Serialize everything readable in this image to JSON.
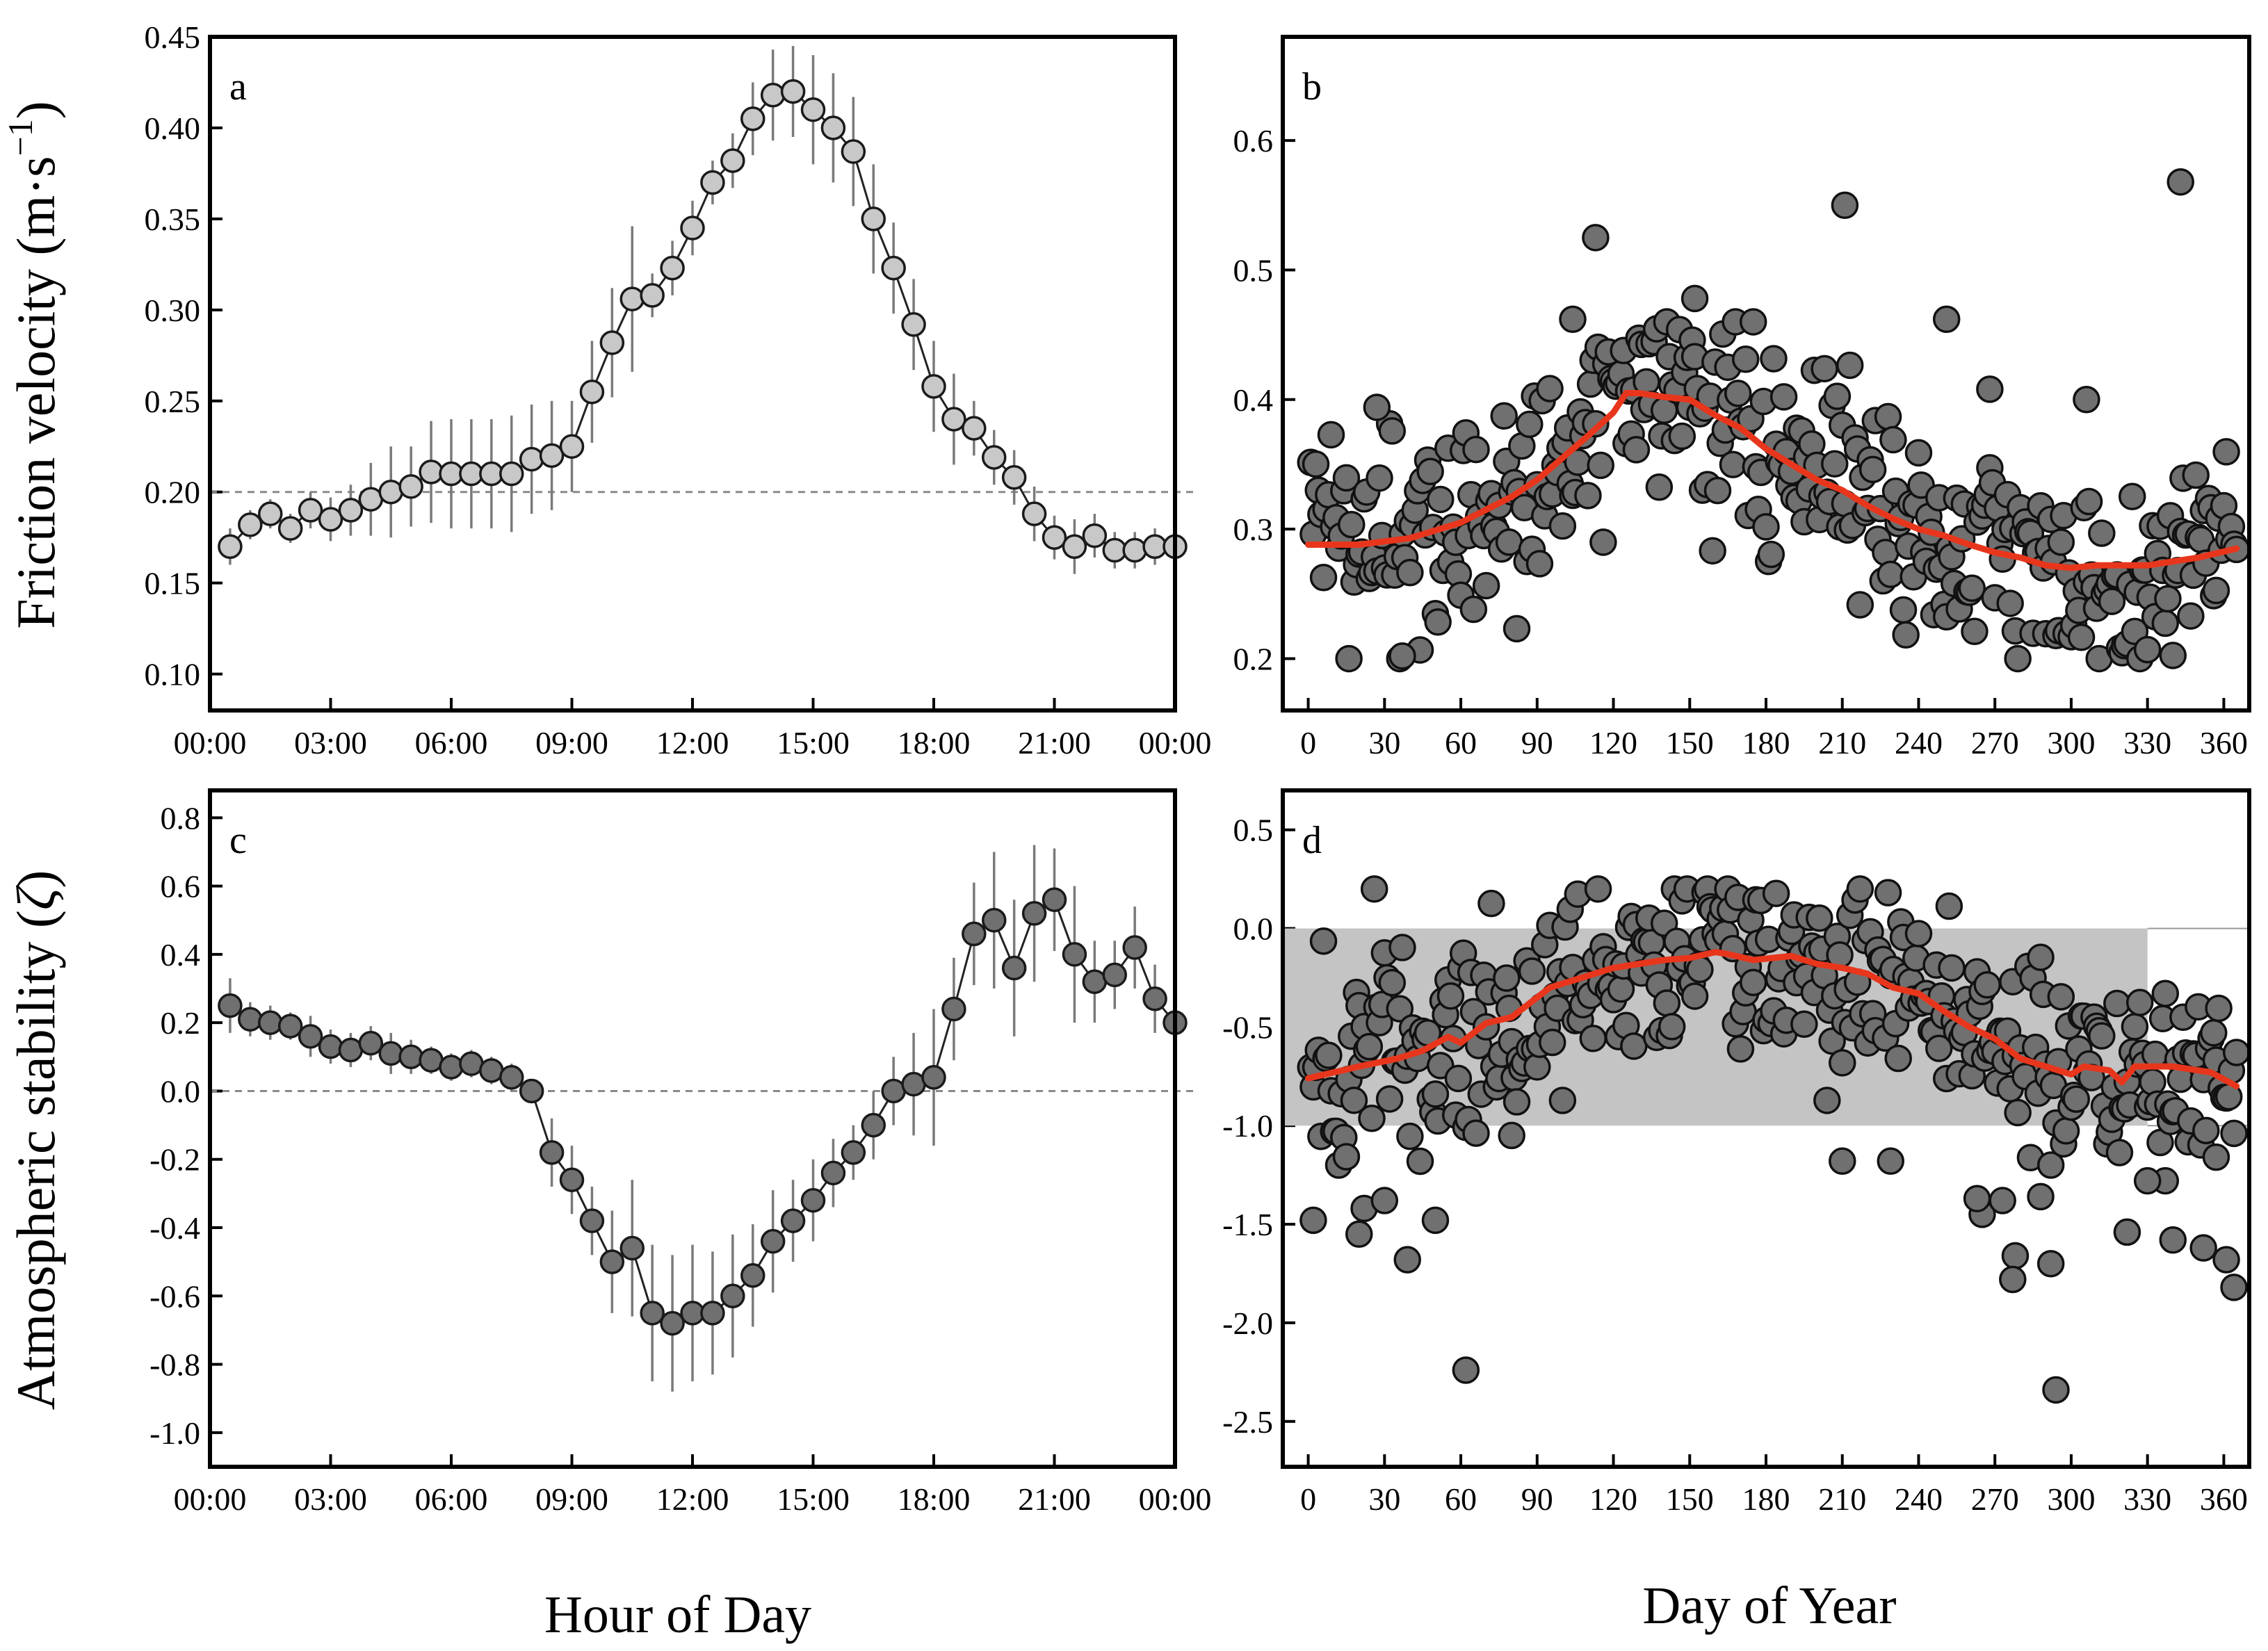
{
  "figure": {
    "ylabel_top_main": "Friction velocity (m·s",
    "ylabel_top_sup": "−1",
    "ylabel_top_end": ")",
    "ylabel_bottom_main": "Atmospheric stability (",
    "ylabel_bottom_sym": "ζ",
    "ylabel_bottom_end": ")",
    "xlabel_left": "Hour of Day",
    "xlabel_right": "Day of Year"
  },
  "colors": {
    "marker_light": "#c8c8c8",
    "marker_dark": "#707070",
    "trend": "#e8361d",
    "shade": "#c4c4c4",
    "errorbar": "#7a7a7a"
  },
  "chart_data": [
    {
      "panel": "a",
      "type": "line",
      "xlabel": "Hour of Day",
      "ylabel": "Friction velocity (m·s−1)",
      "xlim": [
        0,
        24
      ],
      "ylim": [
        0.08,
        0.45
      ],
      "xtick_labels": [
        "00:00",
        "03:00",
        "06:00",
        "09:00",
        "12:00",
        "15:00",
        "18:00",
        "21:00",
        "00:00"
      ],
      "yticks": [
        0.1,
        0.15,
        0.2,
        0.25,
        0.3,
        0.35,
        0.4,
        0.45
      ],
      "ytick_labels": [
        "0.10",
        "0.15",
        "0.20",
        "0.25",
        "0.30",
        "0.35",
        "0.40",
        "0.45"
      ],
      "reference_line": 0.2,
      "x": [
        0.5,
        1.0,
        1.5,
        2.0,
        2.5,
        3.0,
        3.5,
        4.0,
        4.5,
        5.0,
        5.5,
        6.0,
        6.5,
        7.0,
        7.5,
        8.0,
        8.5,
        9.0,
        9.5,
        10.0,
        10.5,
        11.0,
        11.5,
        12.0,
        12.5,
        13.0,
        13.5,
        14.0,
        14.5,
        15.0,
        15.5,
        16.0,
        16.5,
        17.0,
        17.5,
        18.0,
        18.5,
        19.0,
        19.5,
        20.0,
        20.5,
        21.0,
        21.5,
        22.0,
        22.5,
        23.0,
        23.5,
        24.0
      ],
      "y": [
        0.17,
        0.182,
        0.188,
        0.18,
        0.19,
        0.185,
        0.19,
        0.196,
        0.2,
        0.203,
        0.211,
        0.21,
        0.21,
        0.21,
        0.21,
        0.218,
        0.22,
        0.225,
        0.255,
        0.282,
        0.306,
        0.308,
        0.323,
        0.345,
        0.37,
        0.382,
        0.405,
        0.418,
        0.42,
        0.41,
        0.4,
        0.387,
        0.35,
        0.323,
        0.292,
        0.258,
        0.24,
        0.235,
        0.219,
        0.208,
        0.188,
        0.175,
        0.17,
        0.176,
        0.168,
        0.168,
        0.17,
        0.17
      ],
      "error": [
        0.01,
        0.008,
        0.008,
        0.008,
        0.01,
        0.012,
        0.014,
        0.02,
        0.025,
        0.022,
        0.028,
        0.03,
        0.03,
        0.03,
        0.032,
        0.03,
        0.03,
        0.025,
        0.028,
        0.03,
        0.04,
        0.012,
        0.015,
        0.015,
        0.012,
        0.015,
        0.02,
        0.025,
        0.025,
        0.03,
        0.03,
        0.03,
        0.03,
        0.025,
        0.025,
        0.025,
        0.025,
        0.015,
        0.015,
        0.015,
        0.015,
        0.012,
        0.015,
        0.012,
        0.01,
        0.01,
        0.01,
        0.01
      ]
    },
    {
      "panel": "b",
      "type": "scatter",
      "xlabel": "Day of Year",
      "ylabel": "Friction velocity (m·s−1)",
      "xlim": [
        -10,
        370
      ],
      "ylim": [
        0.16,
        0.68
      ],
      "xticks": [
        0,
        30,
        60,
        90,
        120,
        150,
        180,
        210,
        240,
        270,
        300,
        330,
        360
      ],
      "yticks": [
        0.2,
        0.3,
        0.4,
        0.5,
        0.6
      ],
      "ytick_labels": [
        "0.2",
        "0.3",
        "0.4",
        "0.5",
        "0.6"
      ],
      "trend_x": [
        0,
        20,
        40,
        60,
        70,
        80,
        90,
        100,
        110,
        120,
        125,
        130,
        140,
        150,
        160,
        170,
        180,
        190,
        200,
        210,
        220,
        230,
        240,
        250,
        260,
        270,
        280,
        290,
        300,
        310,
        320,
        330,
        340,
        350,
        365
      ],
      "trend_y": [
        0.288,
        0.288,
        0.293,
        0.305,
        0.315,
        0.325,
        0.338,
        0.355,
        0.372,
        0.39,
        0.405,
        0.405,
        0.402,
        0.4,
        0.388,
        0.378,
        0.362,
        0.35,
        0.338,
        0.33,
        0.318,
        0.308,
        0.3,
        0.295,
        0.288,
        0.282,
        0.278,
        0.272,
        0.27,
        0.272,
        0.272,
        0.272,
        0.275,
        0.278,
        0.285
      ],
      "outliers": [
        [
          113,
          0.525
        ],
        [
          211,
          0.55
        ],
        [
          251,
          0.462
        ],
        [
          343,
          0.568
        ],
        [
          104,
          0.462
        ],
        [
          152,
          0.478
        ],
        [
          268,
          0.408
        ],
        [
          306,
          0.4
        ],
        [
          27,
          0.394
        ],
        [
          37,
          0.202
        ]
      ]
    },
    {
      "panel": "c",
      "type": "line",
      "xlabel": "Hour of Day",
      "ylabel": "Atmospheric stability (ζ)",
      "xlim": [
        0,
        24
      ],
      "ylim": [
        -1.1,
        0.88
      ],
      "xtick_labels": [
        "00:00",
        "03:00",
        "06:00",
        "09:00",
        "12:00",
        "15:00",
        "18:00",
        "21:00",
        "00:00"
      ],
      "yticks": [
        -1.0,
        -0.8,
        -0.6,
        -0.4,
        -0.2,
        0.0,
        0.2,
        0.4,
        0.6,
        0.8
      ],
      "ytick_labels": [
        "-1.0",
        "-0.8",
        "-0.6",
        "-0.4",
        "-0.2",
        "0.0",
        "0.2",
        "0.4",
        "0.6",
        "0.8"
      ],
      "reference_line": 0.0,
      "x": [
        0.5,
        1.0,
        1.5,
        2.0,
        2.5,
        3.0,
        3.5,
        4.0,
        4.5,
        5.0,
        5.5,
        6.0,
        6.5,
        7.0,
        7.5,
        8.0,
        8.5,
        9.0,
        9.5,
        10.0,
        10.5,
        11.0,
        11.5,
        12.0,
        12.5,
        13.0,
        13.5,
        14.0,
        14.5,
        15.0,
        15.5,
        16.0,
        16.5,
        17.0,
        17.5,
        18.0,
        18.5,
        19.0,
        19.5,
        20.0,
        20.5,
        21.0,
        21.5,
        22.0,
        22.5,
        23.0,
        23.5,
        24.0
      ],
      "y": [
        0.25,
        0.21,
        0.2,
        0.19,
        0.16,
        0.13,
        0.12,
        0.14,
        0.11,
        0.1,
        0.09,
        0.07,
        0.08,
        0.06,
        0.04,
        0.0,
        -0.18,
        -0.26,
        -0.38,
        -0.5,
        -0.46,
        -0.65,
        -0.68,
        -0.65,
        -0.65,
        -0.6,
        -0.54,
        -0.44,
        -0.38,
        -0.32,
        -0.24,
        -0.18,
        -0.1,
        0.0,
        0.02,
        0.04,
        0.24,
        0.46,
        0.5,
        0.36,
        0.52,
        0.56,
        0.4,
        0.32,
        0.34,
        0.42,
        0.27,
        0.2
      ],
      "error": [
        0.08,
        0.05,
        0.05,
        0.04,
        0.06,
        0.05,
        0.05,
        0.05,
        0.06,
        0.05,
        0.04,
        0.04,
        0.04,
        0.04,
        0.04,
        0.03,
        0.1,
        0.1,
        0.1,
        0.15,
        0.2,
        0.2,
        0.2,
        0.2,
        0.18,
        0.18,
        0.15,
        0.15,
        0.12,
        0.12,
        0.1,
        0.08,
        0.1,
        0.1,
        0.15,
        0.2,
        0.15,
        0.15,
        0.2,
        0.2,
        0.2,
        0.15,
        0.2,
        0.12,
        0.1,
        0.12,
        0.1,
        0.1
      ]
    },
    {
      "panel": "d",
      "type": "scatter",
      "xlabel": "Day of Year",
      "ylabel": "Atmospheric stability (ζ)",
      "xlim": [
        -10,
        370
      ],
      "ylim": [
        -2.73,
        0.7
      ],
      "xticks": [
        0,
        30,
        60,
        90,
        120,
        150,
        180,
        210,
        240,
        270,
        300,
        330,
        360
      ],
      "yticks": [
        0.5,
        0.0,
        -0.5,
        -1.0,
        -1.5,
        -2.0,
        -2.5
      ],
      "ytick_labels": [
        "0.5",
        "0.0",
        "-0.5",
        "-1.0",
        "-1.5",
        "-2.0",
        "-2.5"
      ],
      "shaded_band": {
        "y_from": -1.0,
        "y_to": 0.0,
        "x_from": -10,
        "x_to": 330
      },
      "trend_x": [
        0,
        20,
        35,
        45,
        55,
        60,
        70,
        80,
        95,
        100,
        110,
        120,
        130,
        140,
        150,
        160,
        165,
        175,
        190,
        200,
        210,
        220,
        230,
        240,
        250,
        260,
        270,
        280,
        290,
        300,
        305,
        315,
        320,
        325,
        340,
        355,
        365
      ],
      "trend_y": [
        -0.76,
        -0.7,
        -0.66,
        -0.62,
        -0.55,
        -0.58,
        -0.48,
        -0.45,
        -0.3,
        -0.28,
        -0.24,
        -0.2,
        -0.18,
        -0.16,
        -0.15,
        -0.12,
        -0.13,
        -0.16,
        -0.14,
        -0.18,
        -0.2,
        -0.23,
        -0.3,
        -0.33,
        -0.42,
        -0.5,
        -0.56,
        -0.66,
        -0.7,
        -0.74,
        -0.7,
        -0.72,
        -0.78,
        -0.7,
        -0.7,
        -0.73,
        -0.8
      ],
      "outliers": [
        [
          62,
          -2.24
        ],
        [
          294,
          -2.34
        ],
        [
          2,
          -1.48
        ],
        [
          22,
          -1.42
        ],
        [
          20,
          -1.55
        ],
        [
          30,
          -1.38
        ],
        [
          39,
          -1.68
        ],
        [
          50,
          -1.48
        ],
        [
          80,
          -1.05
        ],
        [
          210,
          -1.18
        ],
        [
          229,
          -1.18
        ],
        [
          265,
          -1.45
        ],
        [
          278,
          -1.66
        ],
        [
          277,
          -1.78
        ],
        [
          292,
          -1.7
        ],
        [
          288,
          -1.36
        ],
        [
          340,
          -1.58
        ],
        [
          352,
          -1.62
        ],
        [
          364,
          -1.82
        ],
        [
          361,
          -1.68
        ],
        [
          322,
          -1.54
        ],
        [
          337,
          -1.28
        ],
        [
          330,
          -1.28
        ],
        [
          357,
          -1.16
        ],
        [
          273,
          -1.38
        ],
        [
          263,
          -1.37
        ]
      ]
    }
  ]
}
